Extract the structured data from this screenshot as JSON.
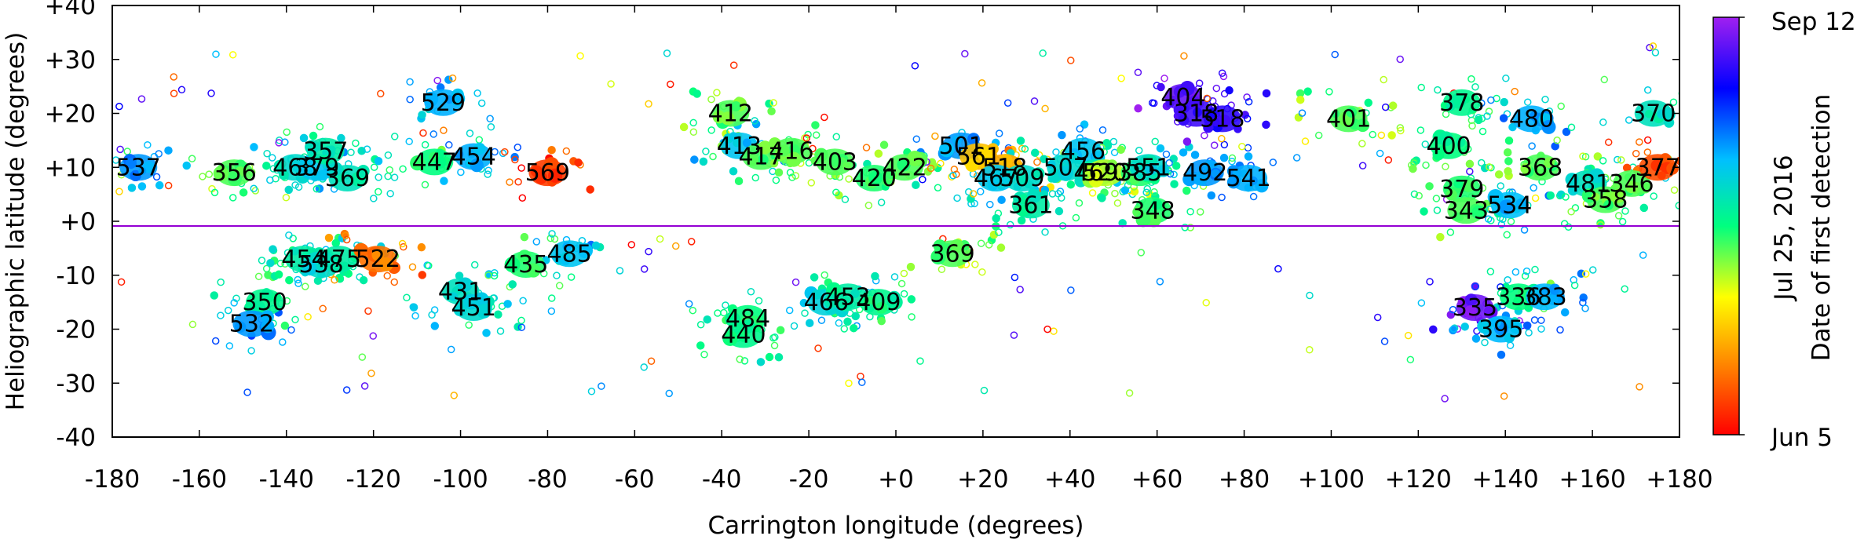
{
  "chart_data": {
    "type": "scatter",
    "xlabel": "Carrington longitude (degrees)",
    "ylabel": "Heliographic latitude (degrees)",
    "xlim": [
      -180,
      180
    ],
    "ylim": [
      -40,
      40
    ],
    "x_ticks": [
      -180,
      -160,
      -140,
      -120,
      -100,
      -80,
      -60,
      -40,
      -20,
      0,
      20,
      40,
      60,
      80,
      100,
      120,
      140,
      160,
      180
    ],
    "x_tick_labels": [
      "-180",
      "-160",
      "-140",
      "-120",
      "-100",
      "-80",
      "-60",
      "-40",
      "-20",
      "+0",
      "+20",
      "+40",
      "+60",
      "+80",
      "+100",
      "+120",
      "+140",
      "+160",
      "+180"
    ],
    "y_ticks": [
      -40,
      -30,
      -20,
      -10,
      0,
      10,
      20,
      30,
      40
    ],
    "y_tick_labels": [
      "-40",
      "-30",
      "-20",
      "-10",
      "+0",
      "+10",
      "+20",
      "+30",
      "+40"
    ],
    "equator_line": true,
    "colorbar": {
      "title": "Date of first detection",
      "labels": [
        "Sep 12",
        "Jul 25, 2016",
        "Jun 5"
      ],
      "colors": [
        "#a020f0",
        "#0000ff",
        "#00bfff",
        "#00ff7f",
        "#ffff00",
        "#ff7f00",
        "#ff0000"
      ]
    },
    "regions": [
      {
        "label": "537",
        "x": -174,
        "y": 10,
        "t": 0.3
      },
      {
        "label": "356",
        "x": -152,
        "y": 9,
        "t": 0.55
      },
      {
        "label": "468",
        "x": -138,
        "y": 10,
        "t": 0.4
      },
      {
        "label": "379",
        "x": -133,
        "y": 10,
        "t": 0.35
      },
      {
        "label": "357",
        "x": -131,
        "y": 13,
        "t": 0.45
      },
      {
        "label": "369",
        "x": -126,
        "y": 8,
        "t": 0.42
      },
      {
        "label": "350",
        "x": -145,
        "y": -15,
        "t": 0.48
      },
      {
        "label": "532",
        "x": -148,
        "y": -19,
        "t": 0.3
      },
      {
        "label": "454",
        "x": -136,
        "y": -7,
        "t": 0.45
      },
      {
        "label": "538",
        "x": -132,
        "y": -8,
        "t": 0.4
      },
      {
        "label": "475",
        "x": -128,
        "y": -7,
        "t": 0.45
      },
      {
        "label": "522",
        "x": -119,
        "y": -7,
        "t": 0.85
      },
      {
        "label": "447",
        "x": -106,
        "y": 11,
        "t": 0.5
      },
      {
        "label": "454",
        "x": -97,
        "y": 12,
        "t": 0.32
      },
      {
        "label": "529",
        "x": -104,
        "y": 22,
        "t": 0.32
      },
      {
        "label": "569",
        "x": -80,
        "y": 9,
        "t": 0.92
      },
      {
        "label": "431",
        "x": -100,
        "y": -13,
        "t": 0.42
      },
      {
        "label": "451",
        "x": -97,
        "y": -16,
        "t": 0.4
      },
      {
        "label": "435",
        "x": -85,
        "y": -8,
        "t": 0.52
      },
      {
        "label": "485",
        "x": -75,
        "y": -6,
        "t": 0.35
      },
      {
        "label": "412",
        "x": -38,
        "y": 20,
        "t": 0.55
      },
      {
        "label": "413",
        "x": -36,
        "y": 14,
        "t": 0.35
      },
      {
        "label": "417",
        "x": -31,
        "y": 12,
        "t": 0.55
      },
      {
        "label": "416",
        "x": -24,
        "y": 13,
        "t": 0.55
      },
      {
        "label": "403",
        "x": -14,
        "y": 11,
        "t": 0.55
      },
      {
        "label": "420",
        "x": -5,
        "y": 8,
        "t": 0.52
      },
      {
        "label": "422",
        "x": 2,
        "y": 10,
        "t": 0.55
      },
      {
        "label": "484",
        "x": -34,
        "y": -18,
        "t": 0.5
      },
      {
        "label": "440",
        "x": -35,
        "y": -21,
        "t": 0.48
      },
      {
        "label": "466",
        "x": -16,
        "y": -15,
        "t": 0.38
      },
      {
        "label": "453",
        "x": -11,
        "y": -14,
        "t": 0.45
      },
      {
        "label": "409",
        "x": -4,
        "y": -15,
        "t": 0.48
      },
      {
        "label": "369",
        "x": 13,
        "y": -6,
        "t": 0.55
      },
      {
        "label": "501",
        "x": 15,
        "y": 14,
        "t": 0.3
      },
      {
        "label": "561",
        "x": 19,
        "y": 12,
        "t": 0.75
      },
      {
        "label": "518",
        "x": 25,
        "y": 10,
        "t": 0.78
      },
      {
        "label": "467",
        "x": 23,
        "y": 8,
        "t": 0.35
      },
      {
        "label": "509",
        "x": 29,
        "y": 8,
        "t": 0.4
      },
      {
        "label": "361",
        "x": 31,
        "y": 3,
        "t": 0.45
      },
      {
        "label": "456",
        "x": 43,
        "y": 13,
        "t": 0.35
      },
      {
        "label": "507",
        "x": 39,
        "y": 10,
        "t": 0.4
      },
      {
        "label": "469",
        "x": 46,
        "y": 9,
        "t": 0.45
      },
      {
        "label": "520",
        "x": 48,
        "y": 9,
        "t": 0.62
      },
      {
        "label": "385",
        "x": 56,
        "y": 9,
        "t": 0.52
      },
      {
        "label": "551",
        "x": 58,
        "y": 10,
        "t": 0.4
      },
      {
        "label": "348",
        "x": 59,
        "y": 2,
        "t": 0.52
      },
      {
        "label": "404",
        "x": 66,
        "y": 23,
        "t": 0.06
      },
      {
        "label": "318",
        "x": 69,
        "y": 20,
        "t": 0.1
      },
      {
        "label": "518",
        "x": 75,
        "y": 19,
        "t": 0.12
      },
      {
        "label": "492",
        "x": 71,
        "y": 9,
        "t": 0.3
      },
      {
        "label": "541",
        "x": 81,
        "y": 8,
        "t": 0.32
      },
      {
        "label": "401",
        "x": 104,
        "y": 19,
        "t": 0.55
      },
      {
        "label": "378",
        "x": 130,
        "y": 22,
        "t": 0.48
      },
      {
        "label": "400",
        "x": 127,
        "y": 14,
        "t": 0.5
      },
      {
        "label": "480",
        "x": 146,
        "y": 19,
        "t": 0.32
      },
      {
        "label": "370",
        "x": 174,
        "y": 20,
        "t": 0.42
      },
      {
        "label": "368",
        "x": 148,
        "y": 10,
        "t": 0.55
      },
      {
        "label": "379",
        "x": 130,
        "y": 6,
        "t": 0.52
      },
      {
        "label": "343",
        "x": 131,
        "y": 2,
        "t": 0.55
      },
      {
        "label": "534",
        "x": 141,
        "y": 3,
        "t": 0.34
      },
      {
        "label": "481",
        "x": 159,
        "y": 7,
        "t": 0.42
      },
      {
        "label": "346",
        "x": 169,
        "y": 7,
        "t": 0.55
      },
      {
        "label": "358",
        "x": 163,
        "y": 4,
        "t": 0.55
      },
      {
        "label": "377",
        "x": 175,
        "y": 10,
        "t": 0.9
      },
      {
        "label": "335",
        "x": 133,
        "y": -16,
        "t": 0.05
      },
      {
        "label": "336",
        "x": 143,
        "y": -14,
        "t": 0.5
      },
      {
        "label": "383",
        "x": 149,
        "y": -14,
        "t": 0.33
      },
      {
        "label": "395",
        "x": 139,
        "y": -20,
        "t": 0.33
      }
    ]
  }
}
